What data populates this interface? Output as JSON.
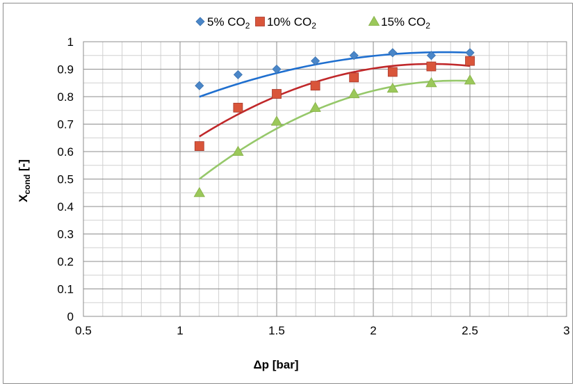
{
  "chart_data": {
    "type": "scatter",
    "title": "",
    "xlabel": "Δp [bar]",
    "ylabel_main": "X",
    "ylabel_sub": "cond",
    "ylabel_suffix": " [-]",
    "xlim": [
      0.5,
      3
    ],
    "ylim": [
      0,
      1
    ],
    "x_ticks": [
      0.5,
      1,
      1.5,
      2,
      2.5,
      3
    ],
    "x_tick_labels": [
      "0.5",
      "1",
      "1.5",
      "2",
      "2.5",
      "3"
    ],
    "y_ticks": [
      0,
      0.1,
      0.2,
      0.3,
      0.4,
      0.5,
      0.6,
      0.7,
      0.8,
      0.9,
      1
    ],
    "y_tick_labels": [
      "0",
      "0.1",
      "0.2",
      "0.3",
      "0.4",
      "0.5",
      "0.6",
      "0.7",
      "0.8",
      "0.9",
      "1"
    ],
    "grid": true,
    "legend_position": "top",
    "series": [
      {
        "name_main": "5% CO",
        "name_sub": "2",
        "marker": "diamond",
        "color": "#4a86c8",
        "trend_color": "#1f6fcf",
        "x": [
          1.1,
          1.3,
          1.5,
          1.7,
          1.9,
          2.1,
          2.3,
          2.5
        ],
        "y": [
          0.84,
          0.88,
          0.9,
          0.93,
          0.95,
          0.96,
          0.95,
          0.96
        ],
        "trend": [
          -0.1012,
          0.4792,
          0.3947
        ]
      },
      {
        "name_main": "10% CO",
        "name_sub": "2",
        "marker": "square",
        "color": "#d9553a",
        "trend_color": "#c0282a",
        "x": [
          1.1,
          1.3,
          1.5,
          1.7,
          1.9,
          2.1,
          2.3,
          2.5
        ],
        "y": [
          0.62,
          0.76,
          0.81,
          0.84,
          0.87,
          0.89,
          0.91,
          0.93
        ],
        "trend": [
          -0.1837,
          0.8449,
          -0.0523
        ]
      },
      {
        "name_main": "15% CO",
        "name_sub": "2",
        "marker": "triangle",
        "color": "#9bc85a",
        "trend_color": "#96c86a",
        "x": [
          1.1,
          1.3,
          1.5,
          1.7,
          1.9,
          2.1,
          2.3,
          2.5
        ],
        "y": [
          0.45,
          0.6,
          0.71,
          0.76,
          0.81,
          0.83,
          0.85,
          0.86
        ],
        "trend": [
          -0.2041,
          0.9898,
          -0.3418
        ]
      }
    ]
  }
}
